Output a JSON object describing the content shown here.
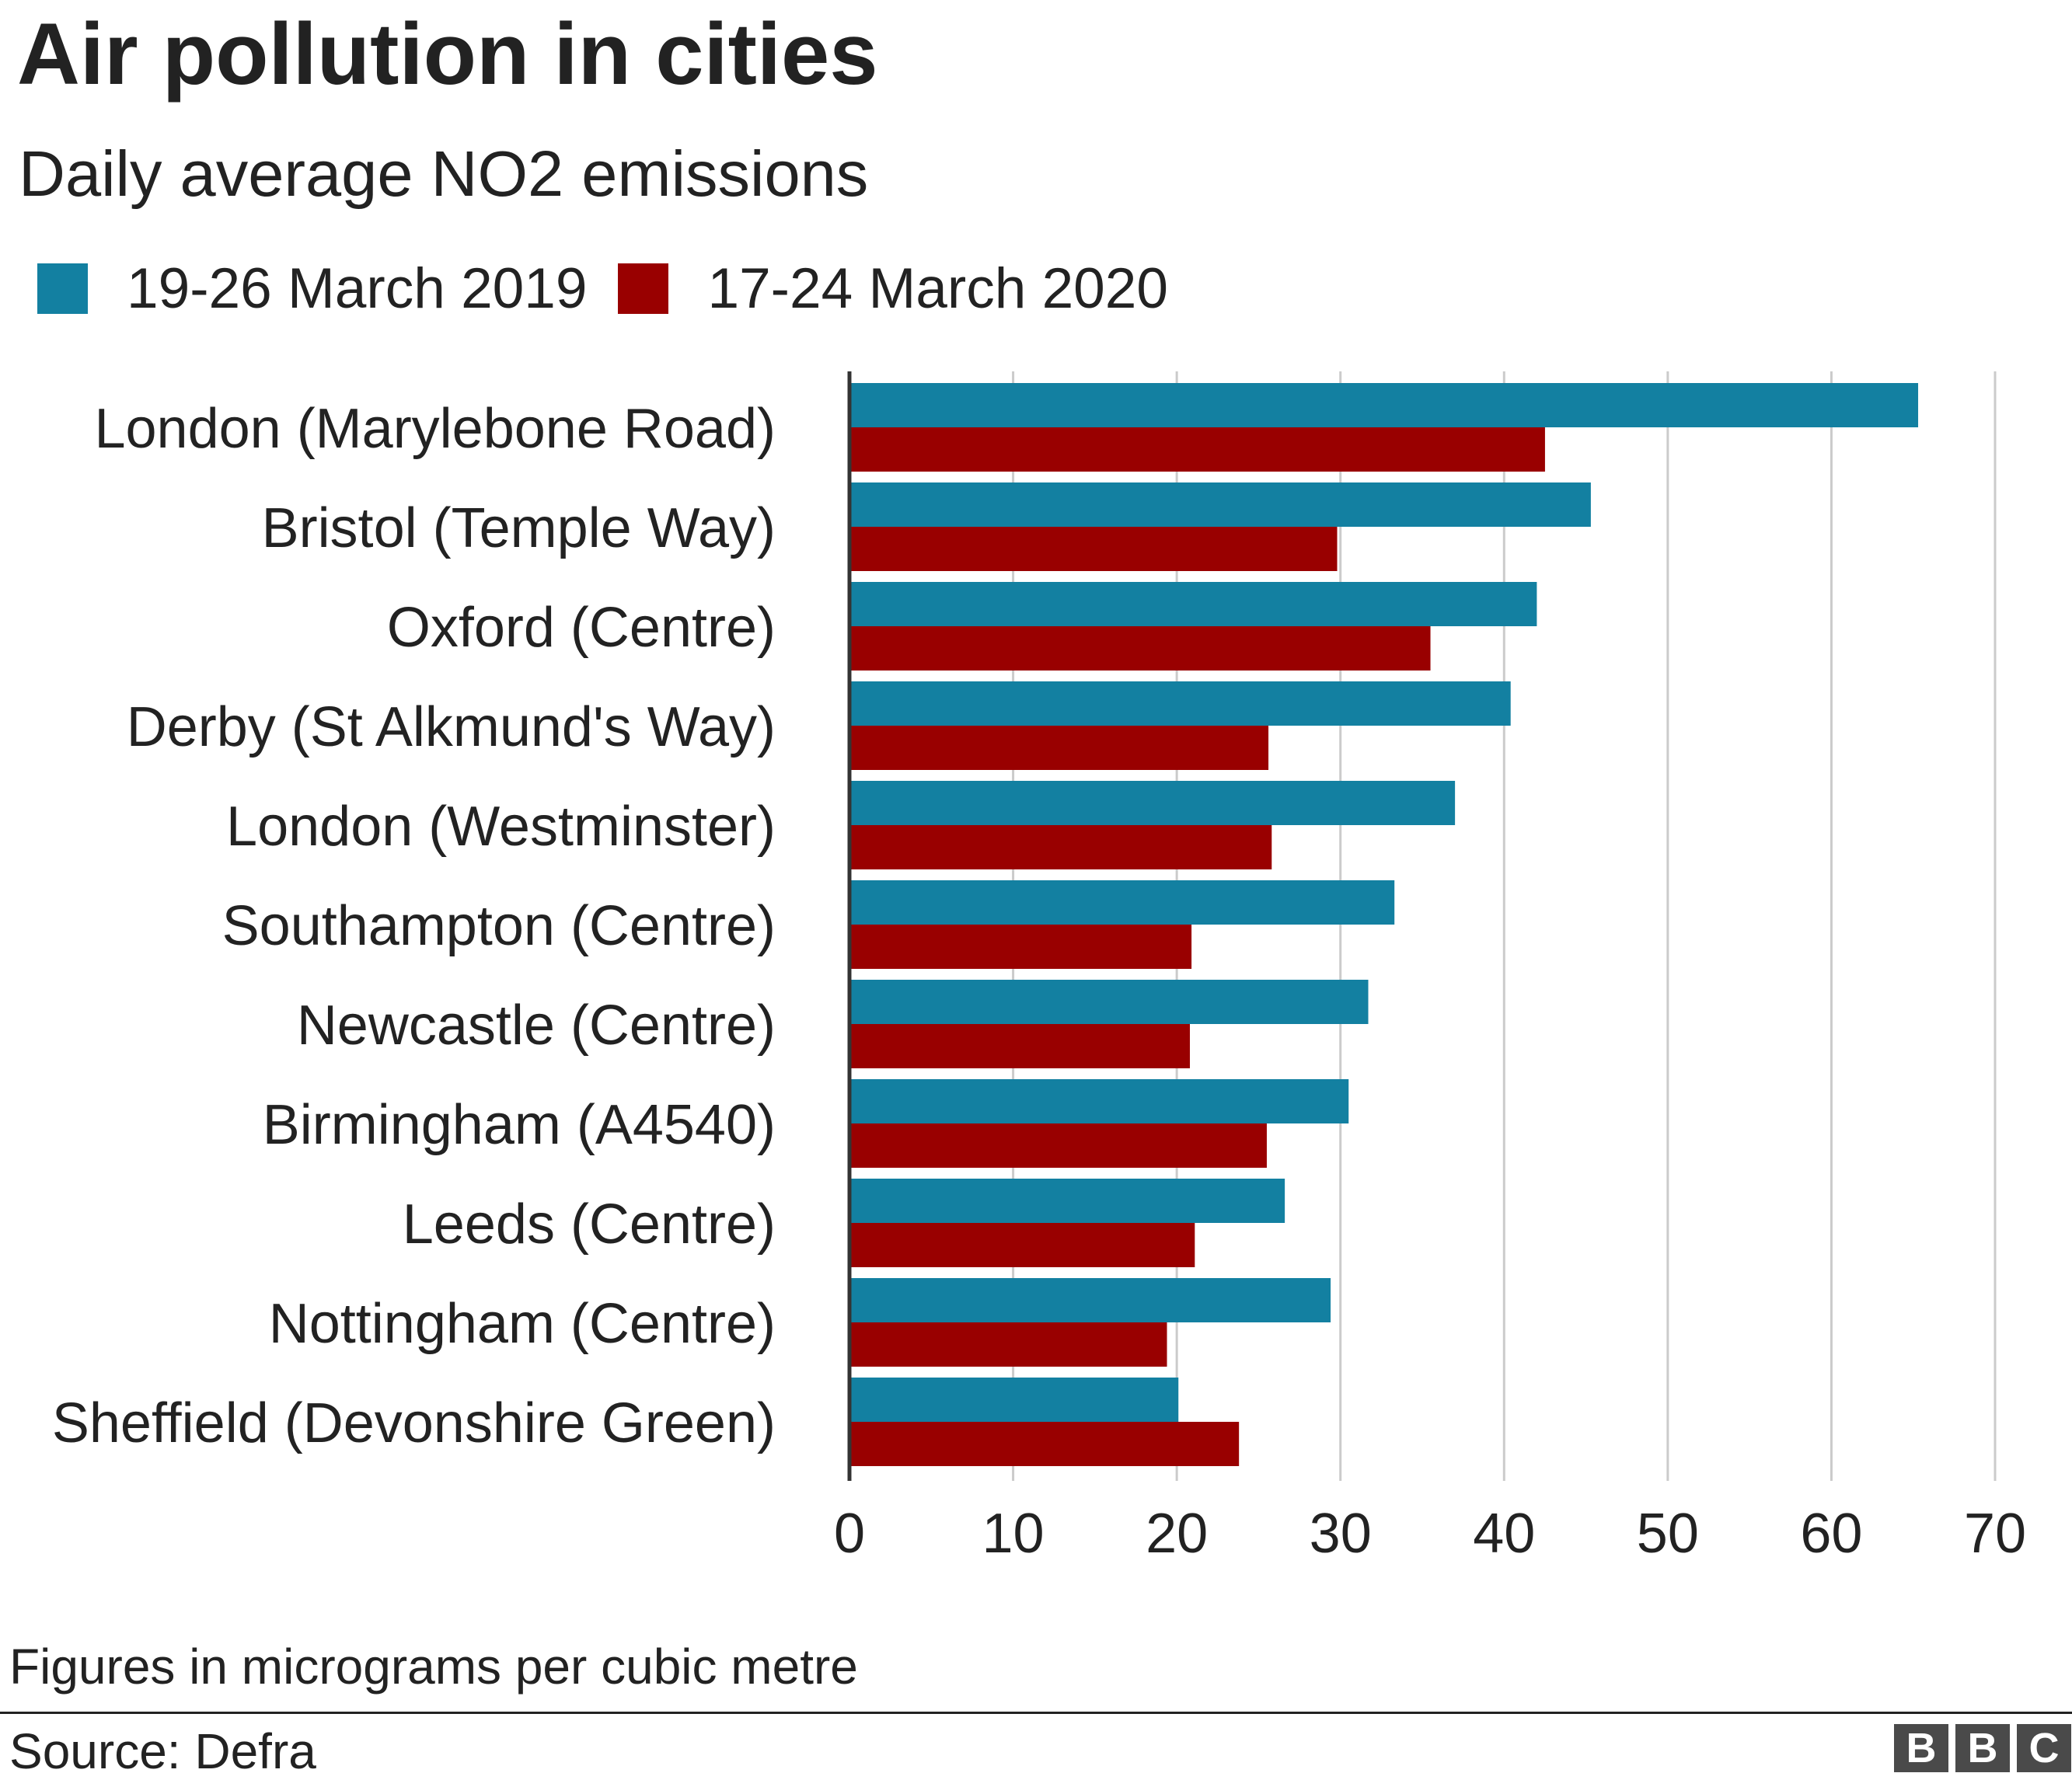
{
  "chart_data": {
    "type": "bar",
    "orientation": "horizontal",
    "title": "Air pollution in cities",
    "subtitle": "Daily average NO2 emissions",
    "categories": [
      "London (Marylebone Road)",
      "Bristol (Temple Way)",
      "Oxford (Centre)",
      "Derby (St Alkmund's Way)",
      "London (Westminster)",
      "Southampton (Centre)",
      "Newcastle (Centre)",
      "Birmingham (A4540)",
      "Leeds (Centre)",
      "Nottingham (Centre)",
      "Sheffield (Devonshire Green)"
    ],
    "series": [
      {
        "name": "19-26 March 2019",
        "color": "#1380a1",
        "values": [
          65.3,
          45.3,
          42.0,
          40.4,
          37.0,
          33.3,
          31.7,
          30.5,
          26.6,
          29.4,
          20.1
        ]
      },
      {
        "name": "17-24 March 2020",
        "color": "#990000",
        "values": [
          42.5,
          29.8,
          35.5,
          25.6,
          25.8,
          20.9,
          20.8,
          25.5,
          21.1,
          19.4,
          23.8
        ]
      }
    ],
    "xlim": [
      0,
      70
    ],
    "xticks": [
      0,
      10,
      20,
      30,
      40,
      50,
      60,
      70
    ],
    "grid": "vertical",
    "legend_position": "top-left"
  },
  "footnote": "Figures in micrograms per cubic metre",
  "source": "Source: Defra",
  "logo": [
    "B",
    "B",
    "C"
  ]
}
